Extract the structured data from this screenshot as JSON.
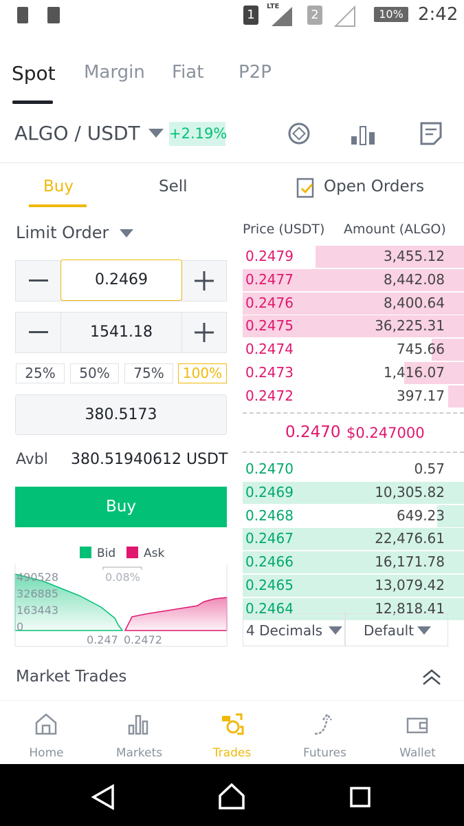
{
  "status_bar": {
    "sim1": "1",
    "network": "LTE",
    "sim2": "2",
    "battery": "10%",
    "time": "2:42"
  },
  "tabs": [
    "Spot",
    "Margin",
    "Fiat",
    "P2P"
  ],
  "pair": {
    "name": "ALGO / USDT",
    "change": "+2.19%"
  },
  "order_tabs": [
    "Buy",
    "Sell",
    "Open Orders"
  ],
  "order_type": "Limit Order",
  "price": "0.2469",
  "amount": "1541.18",
  "percents": [
    "25%",
    "50%",
    "75%",
    "100%"
  ],
  "total": "380.5173",
  "avbl": {
    "label": "Avbl",
    "value": "380.51940612 USDT"
  },
  "buy_button": "Buy",
  "depth_chart": {
    "legend": [
      "Bid",
      "Ask"
    ],
    "spread": "0.08%",
    "y_labels": [
      "490528",
      "326885",
      "163443",
      "0"
    ],
    "x_labels": [
      "0.247",
      "0.2472"
    ]
  },
  "order_book": {
    "headers": [
      "Price (USDT)",
      "Amount (ALGO)"
    ],
    "asks": [
      [
        "0.2479",
        "3,455.12"
      ],
      [
        "0.2477",
        "8,442.08"
      ],
      [
        "0.2476",
        "8,400.64"
      ],
      [
        "0.2475",
        "36,225.31"
      ],
      [
        "0.2474",
        "745.66"
      ],
      [
        "0.2473",
        "1,416.07"
      ],
      [
        "0.2472",
        "397.17"
      ]
    ],
    "mid_price": "0.2470",
    "mid_usd": "$0.247000",
    "bids": [
      [
        "0.2470",
        "0.57"
      ],
      [
        "0.2469",
        "10,305.82"
      ],
      [
        "0.2468",
        "649.23"
      ],
      [
        "0.2467",
        "22,476.61"
      ],
      [
        "0.2466",
        "16,171.78"
      ],
      [
        "0.2465",
        "13,079.42"
      ],
      [
        "0.2464",
        "12,818.41"
      ]
    ],
    "decimals": "4 Decimals",
    "mode": "Default"
  },
  "market_trades": "Market Trades",
  "nav": [
    "Home",
    "Markets",
    "Trades",
    "Futures",
    "Wallet"
  ]
}
